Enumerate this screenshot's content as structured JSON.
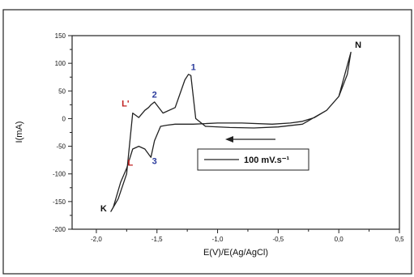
{
  "chart_data": {
    "type": "line",
    "title": "",
    "xlabel": "E(V)/E(Ag/AgCl)",
    "ylabel": "I(mA)",
    "xlim": [
      -2.2,
      0.5
    ],
    "ylim": [
      -200,
      150
    ],
    "xticks": [
      -2.0,
      -1.5,
      -1.0,
      -0.5,
      0.0,
      0.5
    ],
    "xtick_labels": [
      "-2,0",
      "-1,5",
      "-1,0",
      "-0,5",
      "0,0",
      "0,5"
    ],
    "yticks": [
      -200,
      -150,
      -100,
      -50,
      0,
      50,
      100,
      150
    ],
    "ytick_labels": [
      "-200",
      "-150",
      "-100",
      "-50",
      "0",
      "50",
      "100",
      "150"
    ],
    "grid": false,
    "legend": {
      "placement": "center-right",
      "entries": [
        "100 mV.s⁻¹"
      ]
    },
    "arrow_direction": "left",
    "series": [
      {
        "x": [
          -0.55,
          -0.8,
          -1.0,
          -1.1,
          -1.2,
          -1.27,
          -1.35,
          -1.42,
          -1.47,
          -1.52,
          -1.55,
          -1.6,
          -1.65,
          -1.7,
          -1.75,
          -1.8,
          -1.86,
          -1.88,
          -1.82,
          -1.75,
          -1.7,
          -1.65,
          -1.6,
          -1.57,
          -1.55,
          -1.52,
          -1.45,
          -1.35,
          -1.27,
          -1.24,
          -1.22,
          -1.18,
          -1.1,
          -0.9,
          -0.7,
          -0.5,
          -0.3,
          -0.1,
          0.0,
          0.1,
          0.07,
          0.0,
          -0.1,
          -0.2,
          -0.3,
          -0.4,
          -0.55
        ],
        "y": [
          -10,
          -8,
          -8,
          -9,
          -10,
          -10,
          -10,
          -12,
          -14,
          -40,
          -70,
          -55,
          -50,
          -55,
          -90,
          -115,
          -160,
          -168,
          -145,
          -100,
          10,
          2,
          15,
          20,
          25,
          30,
          10,
          20,
          70,
          80,
          78,
          0,
          -14,
          -16,
          -17,
          -15,
          -10,
          15,
          40,
          120,
          80,
          40,
          15,
          2,
          -5,
          -8,
          -10
        ]
      }
    ],
    "annotations": [
      {
        "text": "1",
        "x": -1.2,
        "y": 88,
        "color": "#2a3a9c"
      },
      {
        "text": "2",
        "x": -1.52,
        "y": 38,
        "color": "#2a3a9c"
      },
      {
        "text": "3",
        "x": -1.52,
        "y": -82,
        "color": "#2a3a9c"
      },
      {
        "text": "L'",
        "x": -1.76,
        "y": 22,
        "color": "#c02020"
      },
      {
        "text": "L",
        "x": -1.72,
        "y": -85,
        "color": "#c02020"
      },
      {
        "text": "K",
        "x": -1.94,
        "y": -168,
        "color": "#111111"
      },
      {
        "text": "N",
        "x": 0.16,
        "y": 128,
        "color": "#111111"
      }
    ]
  }
}
